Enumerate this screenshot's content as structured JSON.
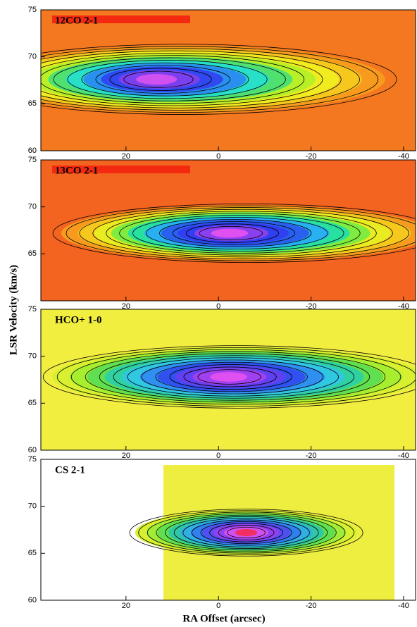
{
  "figure": {
    "ylabel": "LSR Velocity (km/s)",
    "xlabel": "RA Offset (arcsec)"
  },
  "chart_data": [
    {
      "type": "heatmap",
      "title": "12CO 2-1",
      "xlim": [
        38.4,
        -42.6
      ],
      "ylim": [
        60,
        75
      ],
      "xticks": [
        20,
        0,
        -20,
        -40
      ],
      "yticks": [
        60,
        65,
        70,
        75
      ]
    },
    {
      "type": "heatmap",
      "title": "13CO 2-1",
      "xlim": [
        38.4,
        -42.6
      ],
      "ylim": [
        60,
        75
      ],
      "xticks": [
        20,
        0,
        -20,
        -40
      ],
      "yticks": [
        65,
        70,
        75
      ]
    },
    {
      "type": "heatmap",
      "title": "HCO+ 1-0",
      "xlim": [
        38.4,
        -42.6
      ],
      "ylim": [
        60,
        75
      ],
      "xticks": [
        20,
        0,
        -20,
        -40
      ],
      "yticks": [
        60,
        65,
        70,
        75
      ]
    },
    {
      "type": "heatmap",
      "title": "CS 2-1",
      "xlim": [
        38.4,
        -42.6
      ],
      "ylim": [
        60,
        75
      ],
      "xticks": [
        20,
        0,
        -20,
        -40
      ],
      "yticks": [
        60,
        65,
        70,
        75
      ]
    }
  ]
}
